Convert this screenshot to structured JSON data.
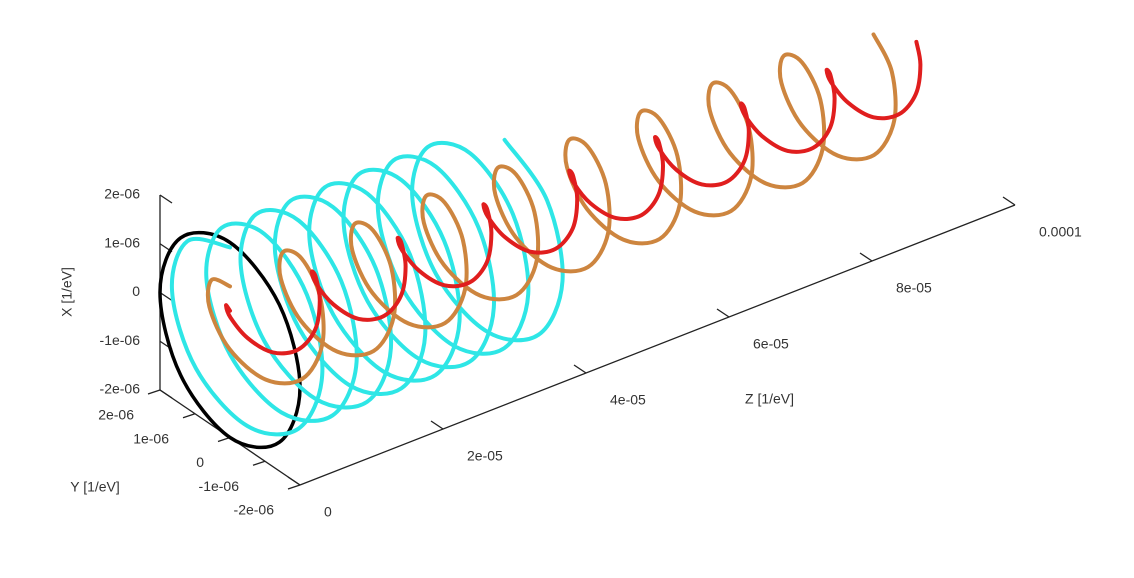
{
  "chart_data": {
    "type": "line3d",
    "xlabel": "X [1/eV]",
    "ylabel": "Y [1/eV]",
    "zlabel": "Z [1/eV]",
    "xlim": [
      -2e-06,
      2e-06
    ],
    "ylim": [
      -2e-06,
      2e-06
    ],
    "zlim": [
      0,
      0.0001
    ],
    "xticks": [
      {
        "value": -2e-06,
        "label": "-2e-06"
      },
      {
        "value": -1e-06,
        "label": "-1e-06"
      },
      0,
      {
        "value": 1e-06,
        "label": "1e-06"
      },
      {
        "value": 2e-06,
        "label": "2e-06"
      }
    ],
    "yticks": [
      {
        "value": -2e-06,
        "label": "-2e-06"
      },
      {
        "value": -1e-06,
        "label": "-1e-06"
      },
      0,
      {
        "value": 1e-06,
        "label": "1e-06"
      },
      {
        "value": 2e-06,
        "label": "2e-06"
      }
    ],
    "zticks": [
      0,
      {
        "value": 2e-05,
        "label": "2e-05"
      },
      {
        "value": 4e-05,
        "label": "4e-05"
      },
      {
        "value": 6e-05,
        "label": "6e-05"
      },
      {
        "value": 8e-05,
        "label": "8e-05"
      },
      0.0001
    ],
    "series": [
      {
        "color": "#000000",
        "closed": true,
        "x": [
          2e-06,
          1.41e-06,
          0,
          -1.41e-06,
          -2e-06,
          -1.41e-06,
          0,
          1.41e-06
        ],
        "y": [
          0,
          1.41e-06,
          2e-06,
          1.41e-06,
          0,
          -1.41e-06,
          -2e-06,
          -1.41e-06
        ],
        "z": [
          0,
          0,
          0,
          0,
          0,
          0,
          0,
          0
        ]
      },
      {
        "color": "#2ee6e6",
        "closed": false,
        "x": [
          1.9e-06,
          1.34e-06,
          0,
          -1.34e-06,
          -1.9e-06,
          -1.34e-06,
          0,
          1.34e-06,
          1.9e-06,
          1.34e-06,
          0,
          -1.34e-06,
          -1.9e-06,
          -1.34e-06,
          0,
          1.34e-06,
          1.9e-06,
          1.34e-06,
          0,
          -1.34e-06,
          -1.9e-06,
          -1.34e-06,
          0,
          1.34e-06,
          1.9e-06,
          1.34e-06,
          0,
          -1.34e-06,
          -1.9e-06,
          -1.34e-06,
          0,
          1.34e-06,
          1.9e-06,
          1.34e-06,
          0,
          -1.34e-06,
          -1.9e-06,
          -1.34e-06,
          0,
          1.34e-06,
          1.9e-06,
          1.34e-06,
          0,
          -1.34e-06,
          -1.9e-06,
          -1.34e-06,
          0,
          1.34e-06,
          1.9e-06,
          1.34e-06,
          0,
          -1.34e-06,
          -1.9e-06,
          -1.34e-06,
          0,
          1.34e-06,
          1.9e-06,
          1.34e-06,
          0,
          -1.34e-06,
          -1.9e-06,
          -1.34e-06,
          0,
          1.34e-06,
          1.9e-06
        ],
        "y": [
          0,
          1.34e-06,
          1.9e-06,
          1.34e-06,
          0,
          -1.34e-06,
          -1.9e-06,
          -1.34e-06,
          0,
          1.34e-06,
          1.9e-06,
          1.34e-06,
          0,
          -1.34e-06,
          -1.9e-06,
          -1.34e-06,
          0,
          1.34e-06,
          1.9e-06,
          1.34e-06,
          0,
          -1.34e-06,
          -1.9e-06,
          -1.34e-06,
          0,
          1.34e-06,
          1.9e-06,
          1.34e-06,
          0,
          -1.34e-06,
          -1.9e-06,
          -1.34e-06,
          0,
          1.34e-06,
          1.9e-06,
          1.34e-06,
          0,
          -1.34e-06,
          -1.9e-06,
          -1.34e-06,
          0,
          1.34e-06,
          1.9e-06,
          1.34e-06,
          0,
          -1.34e-06,
          -1.9e-06,
          -1.34e-06,
          0,
          1.34e-06,
          1.9e-06,
          1.34e-06,
          0,
          -1.34e-06,
          -1.9e-06,
          -1.34e-06,
          0,
          1.34e-06,
          1.9e-06,
          1.34e-06,
          0,
          -1.34e-06,
          -1.9e-06,
          -1.34e-06,
          0
        ],
        "z": [
          0,
          6e-07,
          1.2e-06,
          1.8e-06,
          2.4e-06,
          3e-06,
          3.6e-06,
          4.2e-06,
          4.8e-06,
          5.4e-06,
          6e-06,
          6.6e-06,
          7.2e-06,
          7.8e-06,
          8.4e-06,
          9e-06,
          9.6e-06,
          1.02e-05,
          1.08e-05,
          1.14e-05,
          1.2e-05,
          1.26e-05,
          1.32e-05,
          1.38e-05,
          1.44e-05,
          1.5e-05,
          1.56e-05,
          1.62e-05,
          1.68e-05,
          1.74e-05,
          1.8e-05,
          1.86e-05,
          1.92e-05,
          1.98e-05,
          2.04e-05,
          2.1e-05,
          2.16e-05,
          2.22e-05,
          2.28e-05,
          2.34e-05,
          2.4e-05,
          2.46e-05,
          2.52e-05,
          2.58e-05,
          2.64e-05,
          2.7e-05,
          2.76e-05,
          2.82e-05,
          2.88e-05,
          2.94e-05,
          3e-05,
          3.06e-05,
          3.12e-05,
          3.18e-05,
          3.24e-05,
          3.3e-05,
          3.36e-05,
          3.42e-05,
          3.48e-05,
          3.54e-05,
          3.6e-05,
          3.66e-05,
          3.72e-05,
          3.78e-05,
          3.84e-05
        ]
      },
      {
        "color": "#cd853f",
        "closed": false,
        "x": [
          1.1e-06,
          7.8e-07,
          0,
          -7.8e-07,
          -1.1e-06,
          -7.8e-07,
          0,
          7.8e-07,
          1.1e-06,
          7.8e-07,
          0,
          -7.8e-07,
          -1.1e-06,
          -7.8e-07,
          0,
          7.8e-07,
          1.1e-06,
          7.8e-07,
          0,
          -7.8e-07,
          -1.1e-06,
          -7.8e-07,
          0,
          7.8e-07,
          1.1e-06,
          7.8e-07,
          0,
          -7.8e-07,
          -1.1e-06,
          -7.8e-07,
          0,
          7.8e-07,
          1.1e-06,
          7.8e-07,
          0,
          -7.8e-07,
          -1.1e-06,
          -7.8e-07,
          0,
          7.8e-07,
          1.1e-06,
          7.8e-07,
          0,
          -7.8e-07,
          -1.1e-06,
          -7.8e-07,
          0,
          7.8e-07,
          1.1e-06,
          7.8e-07,
          0,
          -7.8e-07,
          -1.1e-06,
          -7.8e-07,
          0,
          7.8e-07,
          1.1e-06,
          7.8e-07,
          0,
          -7.8e-07,
          -1.1e-06,
          -7.8e-07,
          0,
          7.8e-07,
          1.1e-06,
          7.8e-07,
          0,
          -7.8e-07,
          -1.1e-06,
          -7.8e-07,
          0,
          7.8e-07,
          1.1e-06
        ],
        "y": [
          0,
          7.8e-07,
          1.1e-06,
          7.8e-07,
          0,
          -7.8e-07,
          -1.1e-06,
          -7.8e-07,
          0,
          7.8e-07,
          1.1e-06,
          7.8e-07,
          0,
          -7.8e-07,
          -1.1e-06,
          -7.8e-07,
          0,
          7.8e-07,
          1.1e-06,
          7.8e-07,
          0,
          -7.8e-07,
          -1.1e-06,
          -7.8e-07,
          0,
          7.8e-07,
          1.1e-06,
          7.8e-07,
          0,
          -7.8e-07,
          -1.1e-06,
          -7.8e-07,
          0,
          7.8e-07,
          1.1e-06,
          7.8e-07,
          0,
          -7.8e-07,
          -1.1e-06,
          -7.8e-07,
          0,
          7.8e-07,
          1.1e-06,
          7.8e-07,
          0,
          -7.8e-07,
          -1.1e-06,
          -7.8e-07,
          0,
          7.8e-07,
          1.1e-06,
          7.8e-07,
          0,
          -7.8e-07,
          -1.1e-06,
          -7.8e-07,
          0,
          7.8e-07,
          1.1e-06,
          7.8e-07,
          0,
          -7.8e-07,
          -1.1e-06,
          -7.8e-07,
          0,
          7.8e-07,
          1.1e-06,
          7.8e-07,
          0,
          -7.8e-07,
          -1.1e-06,
          -7.8e-07,
          0
        ],
        "z": [
          0,
          1.25e-06,
          2.5e-06,
          3.75e-06,
          5e-06,
          6.25e-06,
          7.5e-06,
          8.75e-06,
          1e-05,
          1.125e-05,
          1.25e-05,
          1.375e-05,
          1.5e-05,
          1.625e-05,
          1.75e-05,
          1.875e-05,
          2e-05,
          2.125e-05,
          2.25e-05,
          2.375e-05,
          2.5e-05,
          2.625e-05,
          2.75e-05,
          2.875e-05,
          3e-05,
          3.125e-05,
          3.25e-05,
          3.375e-05,
          3.5e-05,
          3.625e-05,
          3.75e-05,
          3.875e-05,
          4e-05,
          4.125e-05,
          4.25e-05,
          4.375e-05,
          4.5e-05,
          4.625e-05,
          4.75e-05,
          4.875e-05,
          5e-05,
          5.125e-05,
          5.25e-05,
          5.375e-05,
          5.5e-05,
          5.625e-05,
          5.75e-05,
          5.875e-05,
          6e-05,
          6.125e-05,
          6.25e-05,
          6.375e-05,
          6.5e-05,
          6.625e-05,
          6.75e-05,
          6.875e-05,
          7e-05,
          7.125e-05,
          7.25e-05,
          7.375e-05,
          7.5e-05,
          7.625e-05,
          7.75e-05,
          7.875e-05,
          8e-05,
          8.125e-05,
          8.25e-05,
          8.375e-05,
          8.5e-05,
          8.625e-05,
          8.75e-05,
          8.875e-05,
          9e-05
        ]
      },
      {
        "color": "#e01e1e",
        "closed": false,
        "x": [
          6e-07,
          4.2e-07,
          0,
          -4.2e-07,
          -6e-07,
          -4.2e-07,
          0,
          4.2e-07,
          6e-07,
          4.2e-07,
          0,
          -4.2e-07,
          -6e-07,
          -4.2e-07,
          0,
          4.2e-07,
          6e-07,
          4.2e-07,
          0,
          -4.2e-07,
          -6e-07,
          -4.2e-07,
          0,
          4.2e-07,
          6e-07,
          4.2e-07,
          0,
          -4.2e-07,
          -6e-07,
          -4.2e-07,
          0,
          4.2e-07,
          6e-07,
          4.2e-07,
          0,
          -4.2e-07,
          -6e-07,
          -4.2e-07,
          0,
          4.2e-07,
          6e-07,
          4.2e-07,
          0,
          -4.2e-07,
          -6e-07,
          -4.2e-07,
          0,
          4.2e-07,
          6e-07,
          4.2e-07,
          0,
          -4.2e-07,
          -6e-07,
          -4.2e-07,
          0,
          4.2e-07,
          6e-07,
          4.2e-07,
          0,
          -4.2e-07,
          -6e-07,
          -4.2e-07,
          0,
          4.2e-07,
          6e-07
        ],
        "y": [
          0,
          4.2e-07,
          6e-07,
          4.2e-07,
          0,
          -4.2e-07,
          -6e-07,
          -4.2e-07,
          0,
          4.2e-07,
          6e-07,
          4.2e-07,
          0,
          -4.2e-07,
          -6e-07,
          -4.2e-07,
          0,
          4.2e-07,
          6e-07,
          4.2e-07,
          0,
          -4.2e-07,
          -6e-07,
          -4.2e-07,
          0,
          4.2e-07,
          6e-07,
          4.2e-07,
          0,
          -4.2e-07,
          -6e-07,
          -4.2e-07,
          0,
          4.2e-07,
          6e-07,
          4.2e-07,
          0,
          -4.2e-07,
          -6e-07,
          -4.2e-07,
          0,
          4.2e-07,
          6e-07,
          4.2e-07,
          0,
          -4.2e-07,
          -6e-07,
          -4.2e-07,
          0,
          4.2e-07,
          6e-07,
          4.2e-07,
          0,
          -4.2e-07,
          -6e-07,
          -4.2e-07,
          0,
          4.2e-07,
          6e-07,
          4.2e-07,
          0,
          -4.2e-07,
          -6e-07,
          -4.2e-07,
          0
        ],
        "z": [
          0,
          1.5e-06,
          3e-06,
          4.5e-06,
          6e-06,
          7.5e-06,
          9e-06,
          1.05e-05,
          1.2e-05,
          1.35e-05,
          1.5e-05,
          1.65e-05,
          1.8e-05,
          1.95e-05,
          2.1e-05,
          2.25e-05,
          2.4e-05,
          2.55e-05,
          2.7e-05,
          2.85e-05,
          3e-05,
          3.15e-05,
          3.3e-05,
          3.45e-05,
          3.6e-05,
          3.75e-05,
          3.9e-05,
          4.05e-05,
          4.2e-05,
          4.35e-05,
          4.5e-05,
          4.65e-05,
          4.8e-05,
          4.95e-05,
          5.1e-05,
          5.25e-05,
          5.4e-05,
          5.55e-05,
          5.7e-05,
          5.85e-05,
          6e-05,
          6.15e-05,
          6.3e-05,
          6.45e-05,
          6.6e-05,
          6.75e-05,
          6.9e-05,
          7.05e-05,
          7.2e-05,
          7.35e-05,
          7.5e-05,
          7.65e-05,
          7.8e-05,
          7.95e-05,
          8.1e-05,
          8.25e-05,
          8.4e-05,
          8.55e-05,
          8.7e-05,
          8.85e-05,
          9e-05,
          9.15e-05,
          9.3e-05,
          9.45e-05,
          9.6e-05
        ]
      }
    ]
  }
}
